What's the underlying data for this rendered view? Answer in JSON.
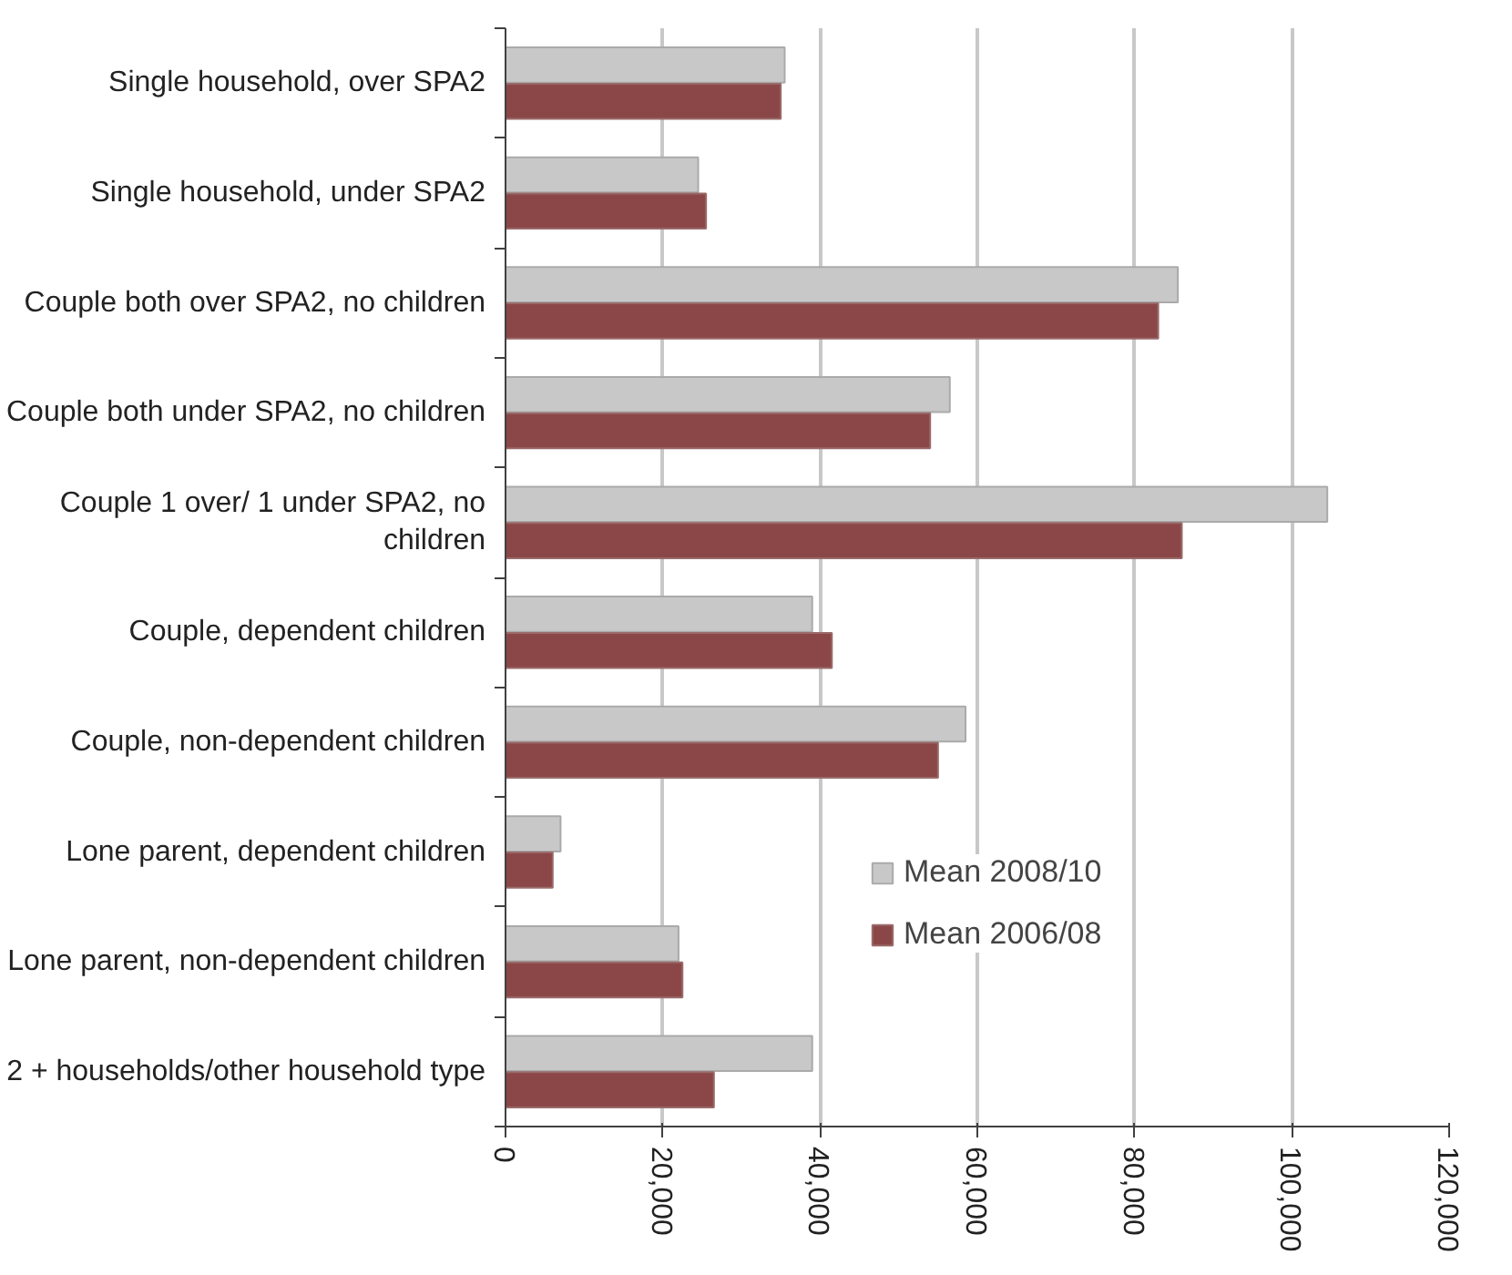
{
  "chart_data": {
    "type": "bar",
    "orientation": "horizontal",
    "categories": [
      "Single household, over SPA2",
      "Single household, under SPA2",
      "Couple both over SPA2, no children",
      "Couple both under SPA2, no children",
      "Couple 1 over/ 1 under SPA2, no children",
      "Couple, dependent children",
      "Couple, non-dependent children",
      "Lone parent, dependent children",
      "Lone parent, non-dependent children",
      "2 + households/other household type"
    ],
    "series": [
      {
        "name": "Mean 2008/10",
        "color": "#c8c8c8",
        "values": [
          35500,
          24500,
          85500,
          56500,
          104500,
          39000,
          58500,
          7000,
          22000,
          39000
        ]
      },
      {
        "name": "Mean 2006/08",
        "color": "#8b4747",
        "values": [
          35000,
          25500,
          83000,
          54000,
          86000,
          41500,
          55000,
          6000,
          22500,
          26500
        ]
      }
    ],
    "xlim": [
      0,
      120000
    ],
    "xticks": [
      {
        "value": 0,
        "label": "0"
      },
      {
        "value": 20000,
        "label": "20,000"
      },
      {
        "value": 40000,
        "label": "40,000"
      },
      {
        "value": 60000,
        "label": "60,000"
      },
      {
        "value": 80000,
        "label": "80,000"
      },
      {
        "value": 100000,
        "label": "100,000"
      },
      {
        "value": 120000,
        "label": "120,000"
      }
    ],
    "grid": "x",
    "legend": "right"
  }
}
